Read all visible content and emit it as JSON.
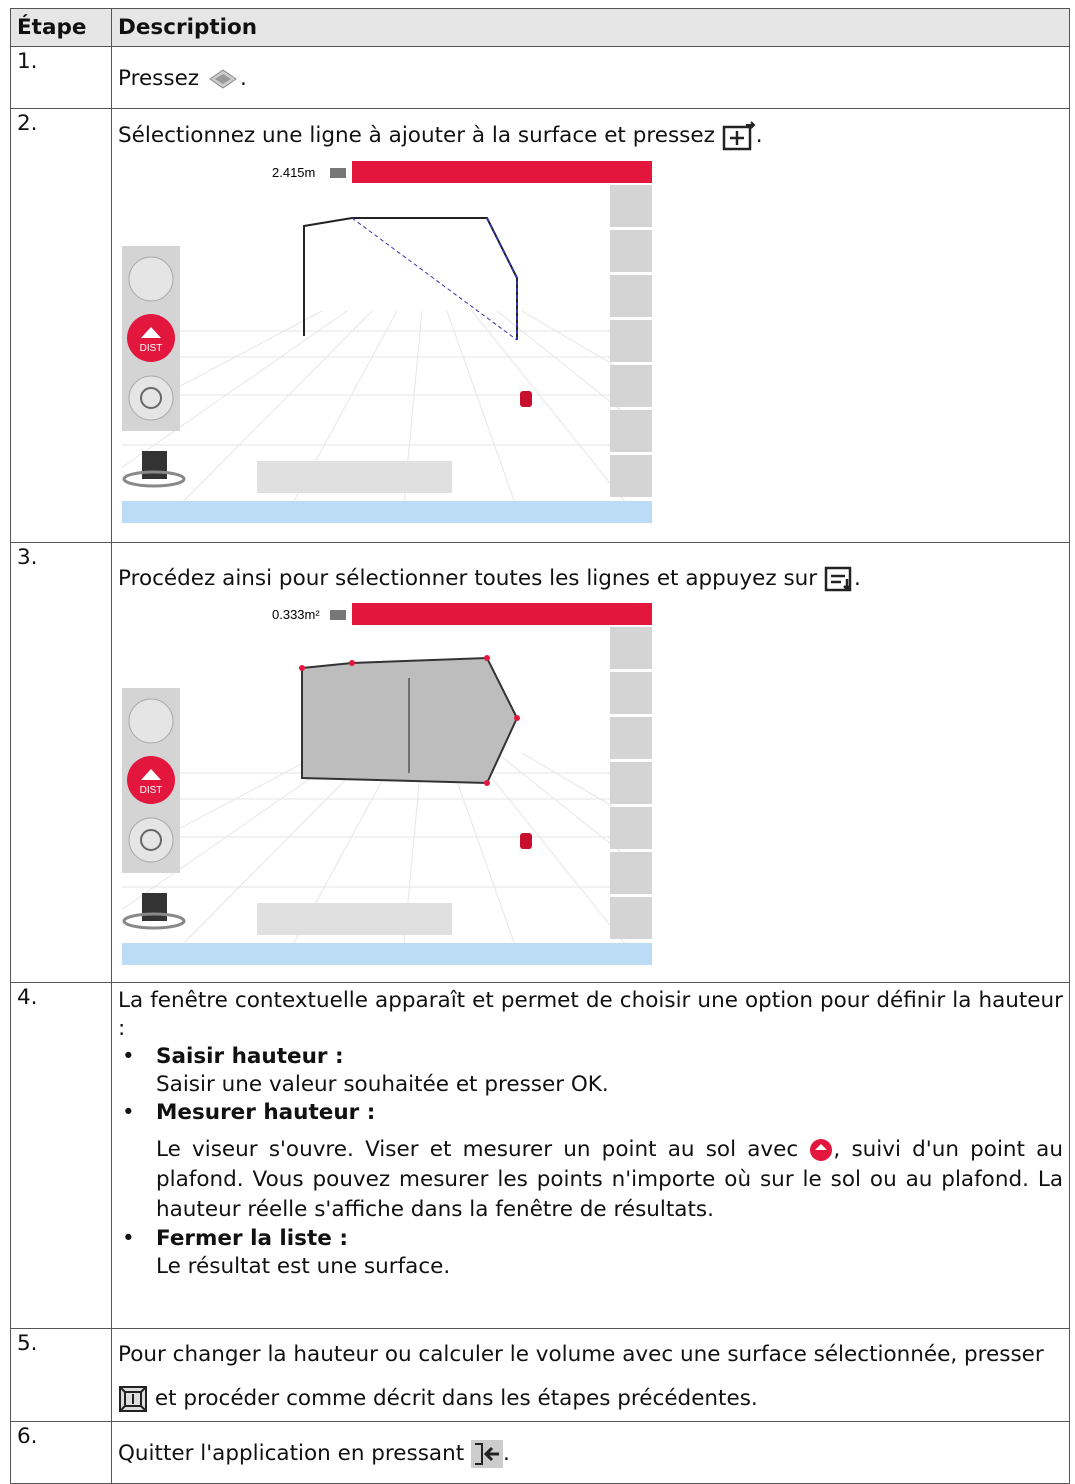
{
  "table": {
    "header": [
      "Étape",
      "Description"
    ],
    "rows": [
      {
        "step": "1.",
        "before": "Pressez",
        "after": "."
      },
      {
        "step": "2.",
        "before": "Sélectionnez une ligne à ajouter à la surface et pressez",
        "after": ".",
        "screen": {
          "reading": "2.415m",
          "button": "DIST"
        }
      },
      {
        "step": "3.",
        "before": "Procédez ainsi pour sélectionner toutes les lignes et appuyez sur",
        "after": ".",
        "screen": {
          "reading": "0.333m²",
          "button": "DIST"
        }
      },
      {
        "step": "4.",
        "intro": "La fenêtre contextuelle apparaît et permet de choisir une option pour définir la hauteur :",
        "options": [
          {
            "label": "Saisir hauteur :",
            "text": "Saisir une valeur souhaitée et presser OK."
          },
          {
            "label": "Mesurer hauteur :",
            "before": "Le viseur s'ouvre. Viser et mesurer un point au sol avec",
            "after": ", suivi d'un point au plafond. Vous pouvez mesurer les points n'importe où sur le sol ou au plafond. La hauteur réelle s'affiche dans la fenêtre de résultats."
          },
          {
            "label": "Fermer la liste :",
            "text": "Le résultat est une surface."
          }
        ]
      },
      {
        "step": "5.",
        "before": "Pour changer la hauteur ou calculer le volume avec une surface sélectionnée, presser",
        "after": "et procéder comme décrit dans les étapes précédentes."
      },
      {
        "step": "6.",
        "before": "Quitter l'application en pressant",
        "after": "."
      }
    ]
  }
}
